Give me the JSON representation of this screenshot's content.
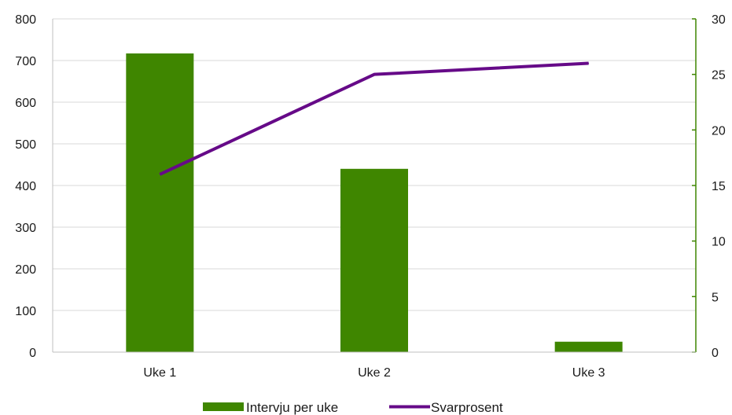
{
  "chart_data": {
    "type": "bar",
    "categories": [
      "Uke 1",
      "Uke 2",
      "Uke 3"
    ],
    "series": [
      {
        "name": "Intervju per uke",
        "type": "bar",
        "axis": "left",
        "values": [
          717,
          440,
          25
        ]
      },
      {
        "name": "Svarprosent",
        "type": "line",
        "axis": "right",
        "values": [
          16,
          25,
          26
        ]
      }
    ],
    "y_left": {
      "min": 0,
      "max": 800,
      "step": 100,
      "ticks": [
        "0",
        "100",
        "200",
        "300",
        "400",
        "500",
        "600",
        "700",
        "800"
      ]
    },
    "y_right": {
      "min": 0,
      "max": 30,
      "step": 5,
      "ticks": [
        "0",
        "5",
        "10",
        "15",
        "20",
        "25",
        "30"
      ]
    },
    "grid": true,
    "legend_position": "bottom",
    "colors": {
      "bar": "#3f8600",
      "line": "#660a88",
      "grid": "#d9d9d9",
      "right_axis": "#3f8600"
    }
  }
}
